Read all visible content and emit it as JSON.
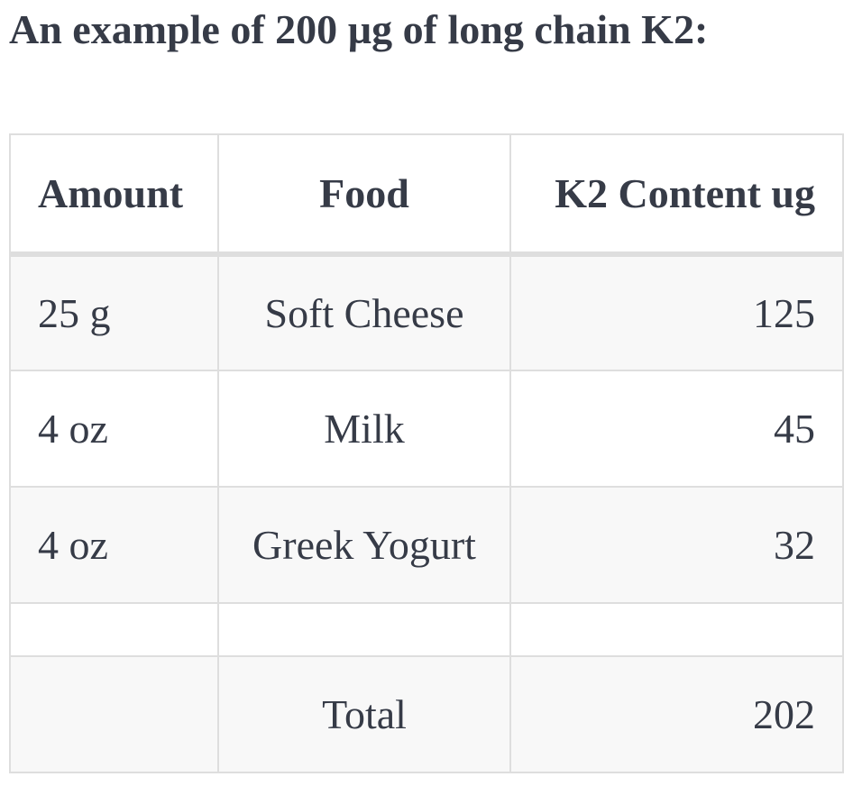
{
  "heading": "An example of 200 µg of long chain K2:",
  "table": {
    "headers": [
      "Amount",
      "Food",
      "K2 Content ug"
    ],
    "rows": [
      [
        "25 g",
        "Soft Cheese",
        "125"
      ],
      [
        "4 oz",
        "Milk",
        "45"
      ],
      [
        "4 oz",
        "Greek Yogurt",
        "32"
      ],
      [
        "",
        "",
        ""
      ],
      [
        "",
        "Total",
        "202"
      ]
    ]
  }
}
